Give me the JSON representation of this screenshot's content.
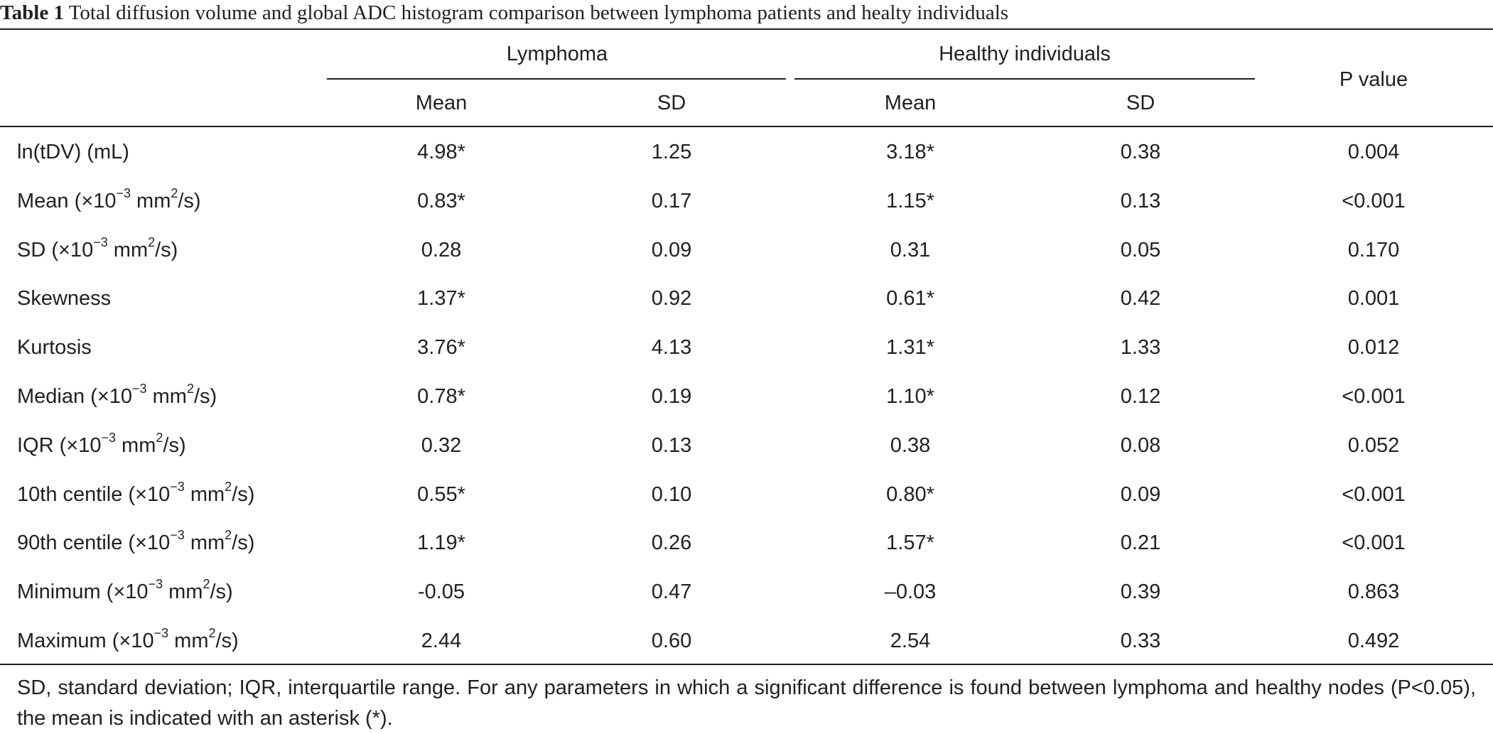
{
  "table": {
    "caption_label": "Table 1",
    "caption_text": "Total diffusion volume and global ADC histogram comparison between lymphoma patients and healty individuals",
    "group_headers": [
      "Lymphoma",
      "Healthy individuals"
    ],
    "sub_headers": [
      "Mean",
      "SD",
      "Mean",
      "SD"
    ],
    "pvalue_header": "P value",
    "rows": [
      {
        "label": "ln(tDV) (mL)",
        "unit_exp": "",
        "unit_sq": "",
        "unit_tail": "",
        "values": [
          "4.98*",
          "1.25",
          "3.18*",
          "0.38",
          "0.004"
        ]
      },
      {
        "label": "Mean (×10",
        "unit_exp": "−3",
        "unit_sq": "2",
        "unit_tail": "/s)",
        "values": [
          "0.83*",
          "0.17",
          "1.15*",
          "0.13",
          "<0.001"
        ]
      },
      {
        "label": "SD (×10",
        "unit_exp": "−3",
        "unit_sq": "2",
        "unit_tail": "/s)",
        "values": [
          "0.28",
          "0.09",
          "0.31",
          "0.05",
          "0.170"
        ]
      },
      {
        "label": "Skewness",
        "unit_exp": "",
        "unit_sq": "",
        "unit_tail": "",
        "values": [
          "1.37*",
          "0.92",
          "0.61*",
          "0.42",
          "0.001"
        ]
      },
      {
        "label": "Kurtosis",
        "unit_exp": "",
        "unit_sq": "",
        "unit_tail": "",
        "values": [
          "3.76*",
          "4.13",
          "1.31*",
          "1.33",
          "0.012"
        ]
      },
      {
        "label": "Median (×10",
        "unit_exp": "−3",
        "unit_sq": "2",
        "unit_tail": "/s)",
        "values": [
          "0.78*",
          "0.19",
          "1.10*",
          "0.12",
          "<0.001"
        ]
      },
      {
        "label": "IQR (×10",
        "unit_exp": "−3",
        "unit_sq": "2",
        "unit_tail": "/s)",
        "values": [
          "0.32",
          "0.13",
          "0.38",
          "0.08",
          "0.052"
        ]
      },
      {
        "label": "10th centile (×10",
        "unit_exp": "−3",
        "unit_sq": "2",
        "unit_tail": "/s)",
        "values": [
          "0.55*",
          "0.10",
          "0.80*",
          "0.09",
          "<0.001"
        ]
      },
      {
        "label": "90th centile (×10",
        "unit_exp": "−3",
        "unit_sq": "2",
        "unit_tail": "/s)",
        "values": [
          "1.19*",
          "0.26",
          "1.57*",
          "0.21",
          "<0.001"
        ]
      },
      {
        "label": "Minimum (×10",
        "unit_exp": "−3",
        "unit_sq": "2",
        "unit_tail": "/s)",
        "values": [
          "-0.05",
          "0.47",
          "–0.03",
          "0.39",
          "0.863"
        ]
      },
      {
        "label": "Maximum (×10",
        "unit_exp": "−3",
        "unit_sq": "2",
        "unit_tail": "/s)",
        "values": [
          "2.44",
          "0.60",
          "2.54",
          "0.33",
          "0.492"
        ]
      }
    ],
    "unit_mid": " mm",
    "footnote": "SD, standard deviation; IQR, interquartile range. For any parameters in which a significant difference is found between lymphoma and healthy nodes (P<0.05), the mean is indicated with an asterisk (*)."
  }
}
